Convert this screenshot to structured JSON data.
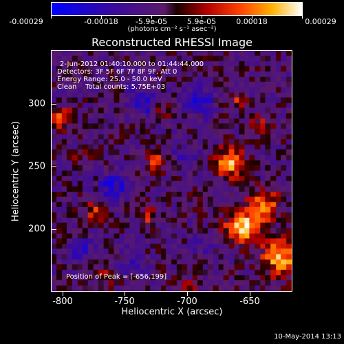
{
  "colorbar": {
    "tick_labels": [
      "-0.00029",
      "-0.00018",
      "-5.9e-05",
      "5.9e-05",
      "0.00018",
      "0.00029"
    ],
    "units_label": "(photons cm⁻² s⁻¹ asec⁻²)"
  },
  "title": "Reconstructed RHESSI Image",
  "annotations": {
    "time_range": "2-Jun-2012 01:40:10.000 to 01:44:44.000",
    "detectors": "Detectors: 3F 5F 6F 7F 8F 9F, Att 0",
    "energy_range": "Energy Range: 25.0 - 50.0 keV",
    "clean_counts": "Clean    Total counts: 5.75E+03",
    "peak_position": "Position of Peak = [-656,199]"
  },
  "footer_date": "10-May-2014 13:13",
  "chart_data": {
    "type": "heatmap",
    "title": "Reconstructed RHESSI Image",
    "xlabel": "Heliocentric X (arcsec)",
    "ylabel": "Heliocentric Y (arcsec)",
    "xlim": [
      -810,
      -616
    ],
    "ylim": [
      148,
      340
    ],
    "x_ticks": [
      -800,
      -750,
      -700,
      -650
    ],
    "y_ticks": [
      200,
      250,
      300
    ],
    "colorbar_range": [
      -0.00029,
      0.00029
    ],
    "colormap": "blue-purple-red-yellow-white",
    "peak": [
      -656,
      199
    ],
    "blobs": [
      {
        "x": -656,
        "y": 199,
        "v": 1.0,
        "s": 9
      },
      {
        "x": -666,
        "y": 250,
        "v": 0.85,
        "s": 8
      },
      {
        "x": -625,
        "y": 175,
        "v": 0.9,
        "s": 10
      },
      {
        "x": -638,
        "y": 215,
        "v": 0.7,
        "s": 9
      },
      {
        "x": -725,
        "y": 252,
        "v": 0.6,
        "s": 5
      },
      {
        "x": -802,
        "y": 286,
        "v": 0.55,
        "s": 6
      },
      {
        "x": -775,
        "y": 210,
        "v": 0.5,
        "s": 6
      },
      {
        "x": -732,
        "y": 206,
        "v": 0.45,
        "s": 5
      },
      {
        "x": -658,
        "y": 300,
        "v": 0.45,
        "s": 5
      },
      {
        "x": -640,
        "y": 280,
        "v": 0.4,
        "s": 6
      },
      {
        "x": -700,
        "y": 150,
        "v": 0.35,
        "s": 6
      },
      {
        "x": -720,
        "y": 292,
        "v": 0.3,
        "s": 5
      },
      {
        "x": -765,
        "y": 160,
        "v": 0.3,
        "s": 5
      },
      {
        "x": -785,
        "y": 255,
        "v": 0.25,
        "s": 5
      },
      {
        "x": -690,
        "y": 220,
        "v": 0.25,
        "s": 5
      },
      {
        "x": -760,
        "y": 232,
        "v": -0.6,
        "s": 8
      },
      {
        "x": -735,
        "y": 300,
        "v": -0.5,
        "s": 9
      },
      {
        "x": -690,
        "y": 300,
        "v": -0.55,
        "s": 8
      },
      {
        "x": -785,
        "y": 180,
        "v": -0.45,
        "s": 7
      },
      {
        "x": -700,
        "y": 255,
        "v": -0.4,
        "s": 7
      },
      {
        "x": -745,
        "y": 170,
        "v": -0.35,
        "s": 7
      },
      {
        "x": -690,
        "y": 185,
        "v": -0.3,
        "s": 6
      }
    ]
  }
}
